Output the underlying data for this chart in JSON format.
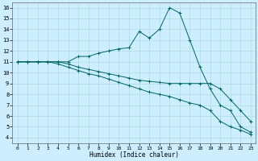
{
  "xlabel": "Humidex (Indice chaleur)",
  "bg_color": "#cceeff",
  "grid_color": "#aadddd",
  "line_color": "#006666",
  "xlim": [
    -0.5,
    23.5
  ],
  "ylim": [
    3.5,
    16.5
  ],
  "xticks": [
    0,
    1,
    2,
    3,
    4,
    5,
    6,
    7,
    8,
    9,
    10,
    11,
    12,
    13,
    14,
    15,
    16,
    17,
    18,
    19,
    20,
    21,
    22,
    23
  ],
  "yticks": [
    4,
    5,
    6,
    7,
    8,
    9,
    10,
    11,
    12,
    13,
    14,
    15,
    16
  ],
  "line1_x": [
    0,
    1,
    2,
    3,
    4,
    5,
    6,
    7,
    8,
    9,
    10,
    11,
    12,
    13,
    14,
    15,
    16,
    17,
    18,
    19,
    20,
    21,
    22,
    23
  ],
  "line1_y": [
    11,
    11,
    11,
    11,
    11,
    11,
    11.5,
    11.5,
    11.8,
    12,
    12.2,
    12.3,
    13.8,
    13.2,
    14,
    16,
    15.5,
    13,
    10.5,
    8.5,
    7,
    6.5,
    5,
    4.5
  ],
  "line2_x": [
    0,
    1,
    2,
    3,
    4,
    5,
    6,
    7,
    8,
    9,
    10,
    11,
    12,
    13,
    14,
    15,
    16,
    17,
    18,
    19,
    20,
    21,
    22,
    23
  ],
  "line2_y": [
    11,
    11,
    11,
    11,
    11,
    10.8,
    10.5,
    10.3,
    10.1,
    9.9,
    9.7,
    9.5,
    9.3,
    9.2,
    9.1,
    9.0,
    9.0,
    9.0,
    9.0,
    9.0,
    8.5,
    7.5,
    6.5,
    5.5
  ],
  "line3_x": [
    0,
    1,
    2,
    3,
    4,
    5,
    6,
    7,
    8,
    9,
    10,
    11,
    12,
    13,
    14,
    15,
    16,
    17,
    18,
    19,
    20,
    21,
    22,
    23
  ],
  "line3_y": [
    11,
    11,
    11,
    11,
    10.8,
    10.5,
    10.2,
    9.9,
    9.7,
    9.4,
    9.1,
    8.8,
    8.5,
    8.2,
    8.0,
    7.8,
    7.5,
    7.2,
    7.0,
    6.5,
    5.5,
    5.0,
    4.7,
    4.3
  ]
}
